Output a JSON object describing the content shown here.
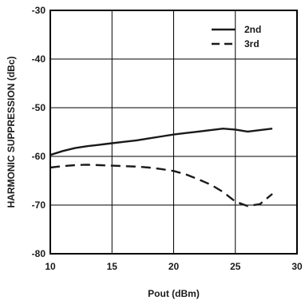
{
  "chart_data": {
    "type": "line",
    "xlabel": "Pout (dBm)",
    "ylabel": "HARMONIC SUPPRESSION (dBc)",
    "xlim": [
      10,
      30
    ],
    "ylim": [
      -80,
      -30
    ],
    "x_ticks": [
      10,
      15,
      20,
      25,
      30
    ],
    "y_ticks": [
      -30,
      -40,
      -50,
      -60,
      -70,
      -80
    ],
    "x_tick_labels": [
      "10",
      "15",
      "20",
      "25",
      "30"
    ],
    "y_tick_labels": [
      "-30",
      "-40",
      "-50",
      "-60",
      "-70",
      "-80"
    ],
    "grid": true,
    "legend_position": "top-right",
    "series": [
      {
        "name": "2nd",
        "style": "solid",
        "x": [
          10,
          11,
          12,
          13,
          14,
          15,
          16,
          17,
          18,
          19,
          20,
          21,
          22,
          23,
          24,
          25,
          26,
          27,
          28
        ],
        "y": [
          -59.7,
          -58.9,
          -58.3,
          -57.9,
          -57.6,
          -57.3,
          -57.0,
          -56.7,
          -56.3,
          -55.9,
          -55.5,
          -55.2,
          -54.9,
          -54.6,
          -54.3,
          -54.5,
          -54.9,
          -54.6,
          -54.3
        ]
      },
      {
        "name": "3rd",
        "style": "dashed",
        "x": [
          10,
          11,
          12,
          13,
          14,
          15,
          16,
          17,
          18,
          19,
          20,
          21,
          22,
          23,
          24,
          25,
          26,
          27,
          28
        ],
        "y": [
          -62.3,
          -62.0,
          -61.8,
          -61.7,
          -61.8,
          -61.9,
          -62.0,
          -62.1,
          -62.3,
          -62.6,
          -63.0,
          -63.7,
          -64.7,
          -65.8,
          -67.3,
          -69.3,
          -70.2,
          -69.8,
          -67.7
        ]
      }
    ]
  }
}
